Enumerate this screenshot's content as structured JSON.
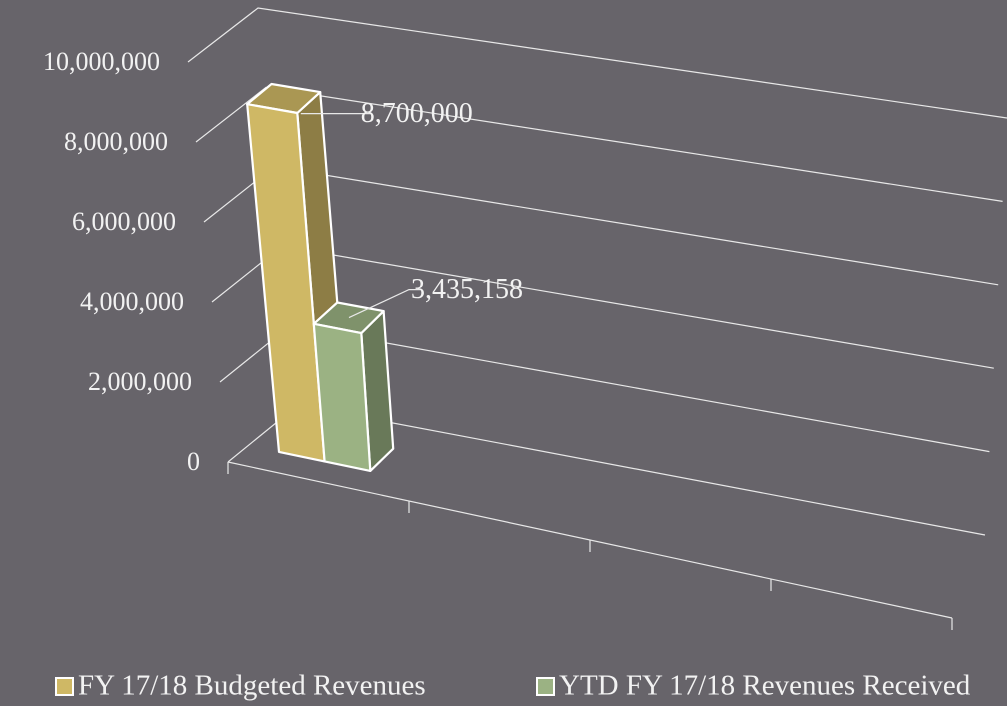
{
  "chart_data": {
    "type": "bar3d",
    "categories": [
      null
    ],
    "series": [
      {
        "name": "FY 17/18 Budgeted Revenues",
        "color": "#cfb865",
        "values": [
          8700000
        ],
        "value_labels": [
          "8,700,000"
        ]
      },
      {
        "name": "YTD FY 17/18 Revenues Received",
        "color": "#9bb283",
        "values": [
          3435158
        ],
        "value_labels": [
          "3,435,158"
        ]
      }
    ],
    "ylim": [
      0,
      10000000
    ],
    "yticks": [
      {
        "value": 0,
        "label": "0"
      },
      {
        "value": 2000000,
        "label": "2,000,000"
      },
      {
        "value": 4000000,
        "label": "4,000,000"
      },
      {
        "value": 6000000,
        "label": "6,000,000"
      },
      {
        "value": 8000000,
        "label": "8,000,000"
      },
      {
        "value": 10000000,
        "label": "10,000,000"
      }
    ],
    "grid": true,
    "legend": "bottom"
  }
}
